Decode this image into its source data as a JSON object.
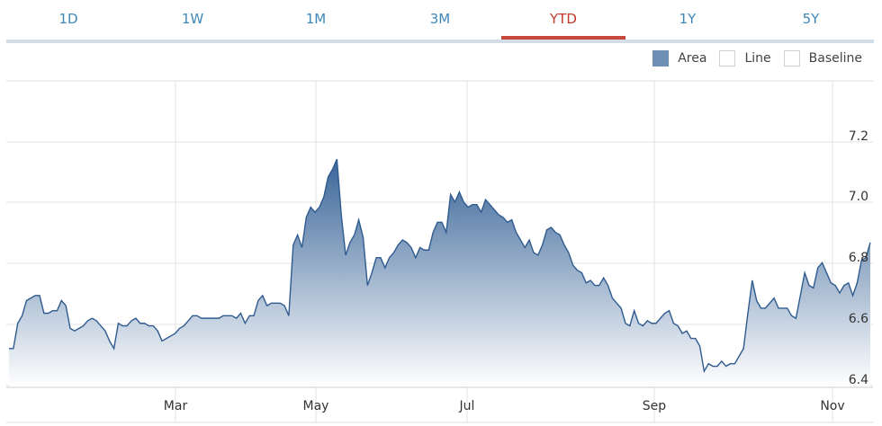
{
  "tabs": [
    {
      "label": "1D",
      "active": false
    },
    {
      "label": "1W",
      "active": false
    },
    {
      "label": "1M",
      "active": false
    },
    {
      "label": "3M",
      "active": false
    },
    {
      "label": "YTD",
      "active": true
    },
    {
      "label": "1Y",
      "active": false
    },
    {
      "label": "5Y",
      "active": false
    }
  ],
  "legend": {
    "area": "Area",
    "line": "Line",
    "baseline": "Baseline",
    "selected": "Area"
  },
  "colors": {
    "accent": "#c8473a",
    "tab_text": "#3f87b8",
    "line": "#2f5b8f",
    "fill_top": "#3a6598",
    "fill_bottom": "#ffffff",
    "grid": "#dddddd"
  },
  "chart_data": {
    "type": "area",
    "x_ticks": [
      "Mar",
      "May",
      "Jul",
      "Sep",
      "Nov"
    ],
    "y_ticks": [
      "6.4",
      "6.6",
      "6.8",
      "7.0",
      "7.2"
    ],
    "ylim": [
      6.37,
      7.58
    ],
    "grid": true,
    "values": [
      6.52,
      6.52,
      6.62,
      6.65,
      6.71,
      6.72,
      6.73,
      6.73,
      6.66,
      6.66,
      6.67,
      6.67,
      6.71,
      6.69,
      6.6,
      6.59,
      6.6,
      6.61,
      6.63,
      6.64,
      6.63,
      6.61,
      6.59,
      6.55,
      6.52,
      6.62,
      6.61,
      6.61,
      6.63,
      6.64,
      6.62,
      6.62,
      6.61,
      6.61,
      6.59,
      6.55,
      6.56,
      6.57,
      6.58,
      6.6,
      6.61,
      6.63,
      6.65,
      6.65,
      6.64,
      6.64,
      6.64,
      6.64,
      6.64,
      6.65,
      6.65,
      6.65,
      6.64,
      6.66,
      6.62,
      6.65,
      6.65,
      6.71,
      6.73,
      6.69,
      6.7,
      6.7,
      6.7,
      6.69,
      6.65,
      6.93,
      6.97,
      6.92,
      7.04,
      7.08,
      7.06,
      7.08,
      7.12,
      7.2,
      7.23,
      7.27,
      7.05,
      6.89,
      6.94,
      6.97,
      7.03,
      6.96,
      6.77,
      6.82,
      6.88,
      6.88,
      6.84,
      6.88,
      6.9,
      6.93,
      6.95,
      6.94,
      6.92,
      6.88,
      6.92,
      6.91,
      6.91,
      6.98,
      7.02,
      7.02,
      6.98,
      7.13,
      7.1,
      7.14,
      7.1,
      7.08,
      7.09,
      7.09,
      7.06,
      7.11,
      7.09,
      7.07,
      7.05,
      7.04,
      7.02,
      7.03,
      6.98,
      6.95,
      6.92,
      6.95,
      6.9,
      6.89,
      6.93,
      6.99,
      7.0,
      6.98,
      6.97,
      6.93,
      6.9,
      6.85,
      6.83,
      6.82,
      6.78,
      6.79,
      6.77,
      6.77,
      6.8,
      6.77,
      6.72,
      6.7,
      6.68,
      6.62,
      6.61,
      6.67,
      6.62,
      6.61,
      6.63,
      6.62,
      6.62,
      6.64,
      6.66,
      6.67,
      6.62,
      6.61,
      6.58,
      6.59,
      6.56,
      6.56,
      6.53,
      6.43,
      6.46,
      6.45,
      6.45,
      6.47,
      6.45,
      6.46,
      6.46,
      6.49,
      6.52,
      6.66,
      6.79,
      6.71,
      6.68,
      6.68,
      6.7,
      6.72,
      6.68,
      6.68,
      6.68,
      6.65,
      6.64,
      6.73,
      6.82,
      6.77,
      6.76,
      6.84,
      6.86,
      6.82,
      6.78,
      6.77,
      6.74,
      6.77,
      6.78,
      6.73,
      6.78,
      6.87,
      6.88,
      6.94
    ]
  }
}
